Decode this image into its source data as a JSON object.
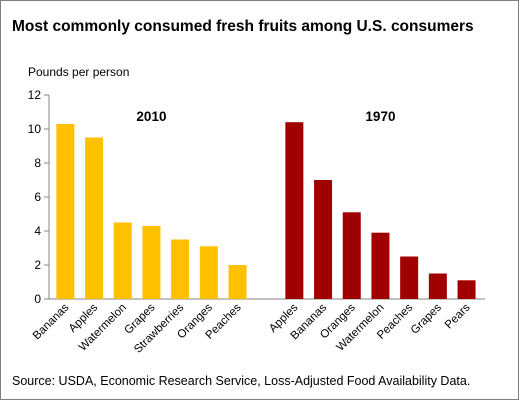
{
  "chart_data": {
    "type": "bar",
    "title": "Most commonly consumed fresh fruits among U.S. consumers",
    "ylabel": "Pounds per person",
    "ylim": [
      0,
      12
    ],
    "yticks": [
      0,
      2,
      4,
      6,
      8,
      10,
      12
    ],
    "grid": false,
    "series": [
      {
        "name": "2010",
        "color": "#FFC000",
        "categories": [
          "Bananas",
          "Apples",
          "Watermelon",
          "Grapes",
          "Strawberries",
          "Oranges",
          "Peaches"
        ],
        "values": [
          10.3,
          9.5,
          4.5,
          4.3,
          3.5,
          3.1,
          2.0
        ]
      },
      {
        "name": "1970",
        "color": "#A00000",
        "categories": [
          "Apples",
          "Bananas",
          "Oranges",
          "Watermelon",
          "Peaches",
          "Grapes",
          "Pears"
        ],
        "values": [
          10.4,
          7.0,
          5.1,
          3.9,
          2.5,
          1.5,
          1.1
        ]
      }
    ],
    "source": "Source: USDA, Economic Research Service, Loss-Adjusted Food Availability Data."
  }
}
